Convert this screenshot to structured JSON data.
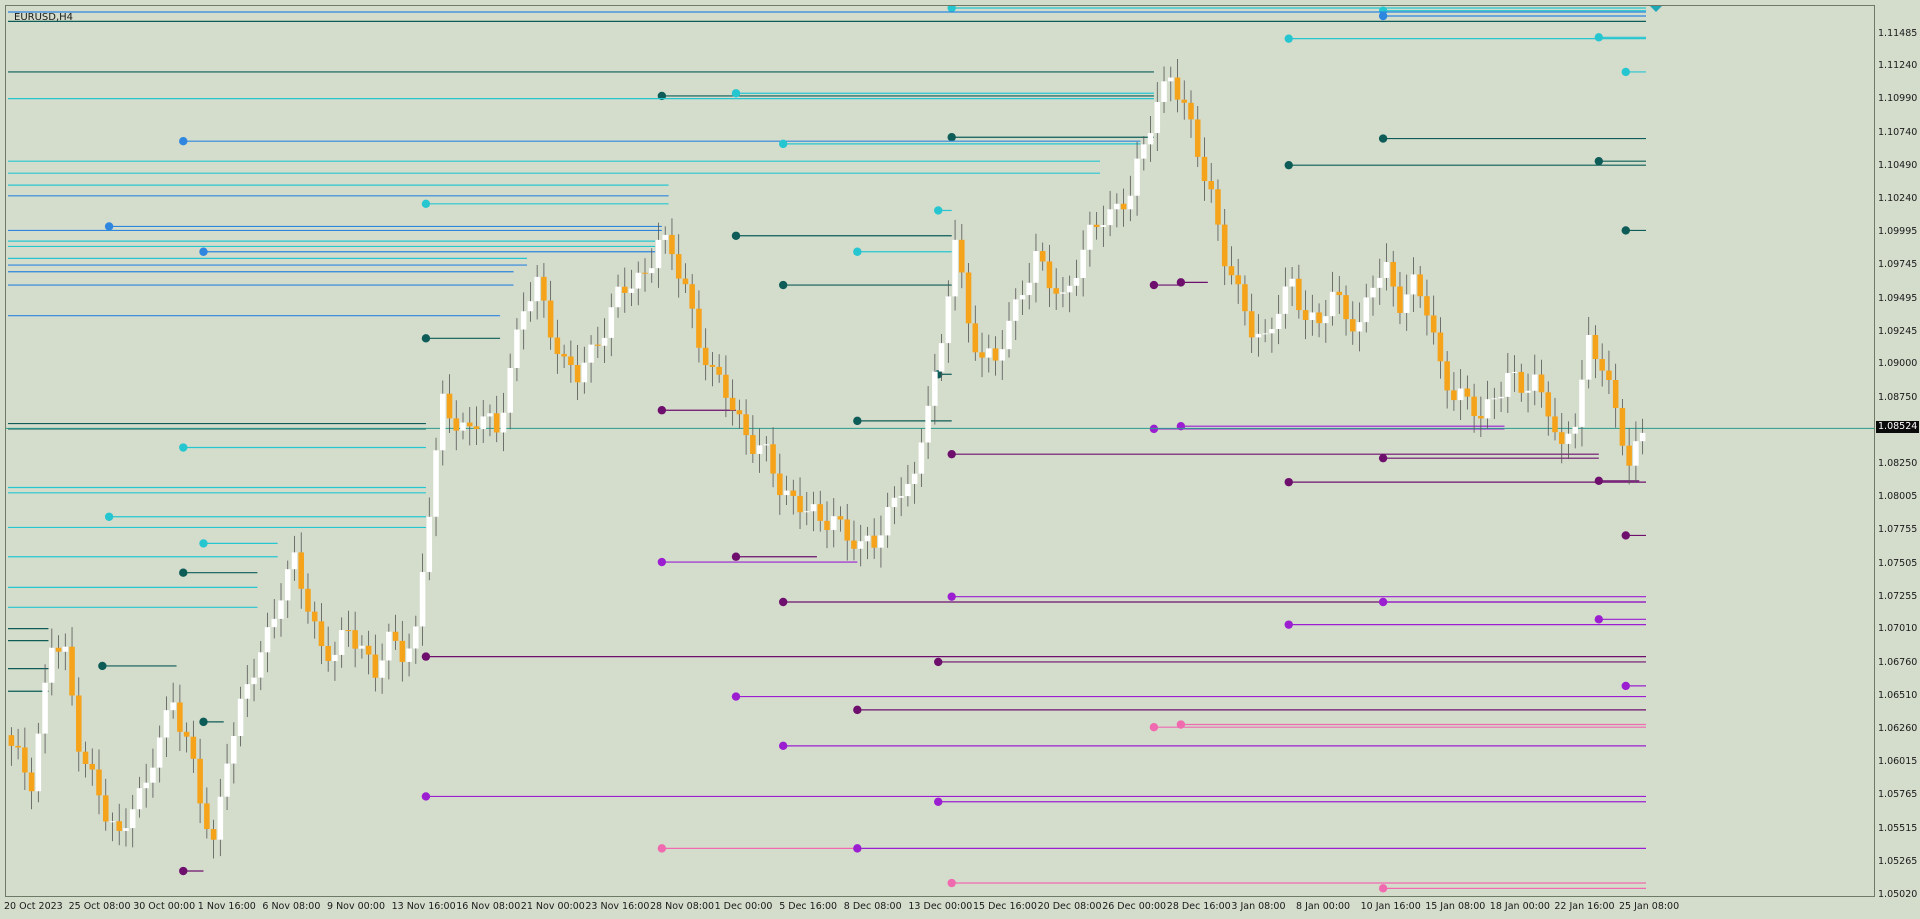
{
  "chart_title": "EURUSD,H4",
  "current_price": "1.08524",
  "colors": {
    "background": "#d4dccc",
    "bull_candle": "#ffffff",
    "bear_candle": "#f5a31a",
    "wick": "#555555",
    "res_dark": "#0d5c57",
    "res_cyan": "#26c6d1",
    "res_blue": "#2e86de",
    "sup_dark": "#6e0f6e",
    "sup_violet": "#9b1fd1",
    "sup_pink": "#f06ab0",
    "current_price_line": "#2a9d8f"
  },
  "price_axis_labels": [
    "1.11485",
    "1.11240",
    "1.10990",
    "1.10740",
    "1.10490",
    "1.10240",
    "1.09995",
    "1.09745",
    "1.09495",
    "1.09245",
    "1.09000",
    "1.08750",
    "1.08250",
    "1.08005",
    "1.07755",
    "1.07505",
    "1.07255",
    "1.07010",
    "1.06760",
    "1.06510",
    "1.06260",
    "1.06015",
    "1.05765",
    "1.05515",
    "1.05265",
    "1.05020"
  ],
  "time_axis_labels": [
    "20 Oct 2023",
    "25 Oct 08:00",
    "30 Oct 00:00",
    "1 Nov 16:00",
    "6 Nov 08:00",
    "9 Nov 00:00",
    "13 Nov 16:00",
    "16 Nov 08:00",
    "21 Nov 00:00",
    "23 Nov 16:00",
    "28 Nov 08:00",
    "1 Dec 00:00",
    "5 Dec 16:00",
    "8 Dec 08:00",
    "13 Dec 00:00",
    "15 Dec 16:00",
    "20 Dec 08:00",
    "26 Dec 00:00",
    "28 Dec 16:00",
    "3 Jan 08:00",
    "8 Jan 00:00",
    "10 Jan 16:00",
    "15 Jan 08:00",
    "18 Jan 00:00",
    "22 Jan 16:00",
    "25 Jan 08:00"
  ],
  "chart_data": {
    "type": "candlestick",
    "symbol": "EURUSD",
    "timeframe": "H4",
    "y_range": [
      1.0498,
      1.1168
    ],
    "current_price": 1.08524,
    "price_path_keypoints": [
      [
        0,
        1.061
      ],
      [
        3,
        1.059
      ],
      [
        6,
        1.069
      ],
      [
        8,
        1.068
      ],
      [
        10,
        1.062
      ],
      [
        14,
        1.056
      ],
      [
        16,
        1.0545
      ],
      [
        18,
        1.0575
      ],
      [
        20,
        1.058
      ],
      [
        22,
        1.062
      ],
      [
        24,
        1.065
      ],
      [
        26,
        1.062
      ],
      [
        28,
        1.057
      ],
      [
        30,
        1.054
      ],
      [
        32,
        1.061
      ],
      [
        34,
        1.064
      ],
      [
        38,
        1.07
      ],
      [
        40,
        1.073
      ],
      [
        42,
        1.075
      ],
      [
        44,
        1.072
      ],
      [
        46,
        1.069
      ],
      [
        48,
        1.068
      ],
      [
        50,
        1.07
      ],
      [
        52,
        1.069
      ],
      [
        54,
        1.067
      ],
      [
        56,
        1.069
      ],
      [
        58,
        1.0685
      ],
      [
        60,
        1.07
      ],
      [
        62,
        1.079
      ],
      [
        64,
        1.087
      ],
      [
        66,
        1.086
      ],
      [
        68,
        1.085
      ],
      [
        70,
        1.086
      ],
      [
        72,
        1.085
      ],
      [
        74,
        1.09
      ],
      [
        76,
        1.094
      ],
      [
        78,
        1.096
      ],
      [
        80,
        1.093
      ],
      [
        82,
        1.09
      ],
      [
        84,
        1.089
      ],
      [
        86,
        1.091
      ],
      [
        88,
        1.093
      ],
      [
        90,
        1.095
      ],
      [
        92,
        1.096
      ],
      [
        94,
        1.097
      ],
      [
        96,
        1.0995
      ],
      [
        98,
        1.098
      ],
      [
        100,
        1.096
      ],
      [
        102,
        1.092
      ],
      [
        104,
        1.089
      ],
      [
        106,
        1.088
      ],
      [
        108,
        1.086
      ],
      [
        110,
        1.084
      ],
      [
        112,
        1.083
      ],
      [
        114,
        1.081
      ],
      [
        116,
        1.08
      ],
      [
        118,
        1.079
      ],
      [
        120,
        1.078
      ],
      [
        122,
        1.079
      ],
      [
        124,
        1.077
      ],
      [
        126,
        1.076
      ],
      [
        128,
        1.077
      ],
      [
        130,
        1.079
      ],
      [
        132,
        1.0805
      ],
      [
        134,
        1.081
      ],
      [
        136,
        1.088
      ],
      [
        138,
        1.091
      ],
      [
        140,
        1.0995
      ],
      [
        142,
        1.093
      ],
      [
        144,
        1.091
      ],
      [
        146,
        1.09
      ],
      [
        148,
        1.093
      ],
      [
        150,
        1.096
      ],
      [
        152,
        1.098
      ],
      [
        154,
        1.096
      ],
      [
        156,
        1.095
      ],
      [
        158,
        1.0975
      ],
      [
        160,
        1.0995
      ],
      [
        162,
        1.101
      ],
      [
        164,
        1.102
      ],
      [
        166,
        1.103
      ],
      [
        168,
        1.106
      ],
      [
        170,
        1.11
      ],
      [
        172,
        1.112
      ],
      [
        174,
        1.109
      ],
      [
        176,
        1.106
      ],
      [
        178,
        1.103
      ],
      [
        180,
        1.098
      ],
      [
        182,
        1.095
      ],
      [
        184,
        1.093
      ],
      [
        186,
        1.092
      ],
      [
        188,
        1.094
      ],
      [
        190,
        1.096
      ],
      [
        192,
        1.094
      ],
      [
        194,
        1.093
      ],
      [
        196,
        1.095
      ],
      [
        198,
        1.094
      ],
      [
        200,
        1.093
      ],
      [
        202,
        1.096
      ],
      [
        204,
        1.097
      ],
      [
        206,
        1.095
      ],
      [
        208,
        1.096
      ],
      [
        210,
        1.094
      ],
      [
        212,
        1.09
      ],
      [
        214,
        1.088
      ],
      [
        216,
        1.087
      ],
      [
        218,
        1.086
      ],
      [
        220,
        1.088
      ],
      [
        222,
        1.089
      ],
      [
        224,
        1.088
      ],
      [
        226,
        1.089
      ],
      [
        228,
        1.087
      ],
      [
        230,
        1.083
      ],
      [
        232,
        1.086
      ],
      [
        234,
        1.092
      ],
      [
        236,
        1.09
      ],
      [
        238,
        1.086
      ],
      [
        240,
        1.083
      ],
      [
        242,
        1.085
      ]
    ],
    "levels": [
      {
        "price": 1.1168,
        "start": 140,
        "type": "res_cyan"
      },
      {
        "price": 1.1166,
        "start": 204,
        "type": "res_cyan"
      },
      {
        "price": 1.1162,
        "start": 204,
        "type": "res_blue"
      },
      {
        "price": 1.1165,
        "start": 0,
        "type": "res_blue"
      },
      {
        "price": 1.1158,
        "start": 0,
        "type": "res_dark"
      },
      {
        "price": 1.1145,
        "start": 190,
        "type": "res_cyan"
      },
      {
        "price": 1.1146,
        "start": 236,
        "type": "res_cyan"
      },
      {
        "price": 1.112,
        "start": 240,
        "type": "res_cyan"
      },
      {
        "price": 1.112,
        "start": 0,
        "type": "res_dark",
        "end": 170
      },
      {
        "price": 1.1102,
        "start": 97,
        "type": "res_dark",
        "end": 170
      },
      {
        "price": 1.1104,
        "start": 108,
        "type": "res_cyan",
        "end": 170
      },
      {
        "price": 1.11,
        "start": 0,
        "type": "res_cyan",
        "end": 170
      },
      {
        "price": 1.1071,
        "start": 140,
        "type": "res_dark",
        "end": 170
      },
      {
        "price": 1.107,
        "start": 204,
        "type": "res_dark"
      },
      {
        "price": 1.1068,
        "start": 26,
        "type": "res_blue",
        "end": 168
      },
      {
        "price": 1.1066,
        "start": 115,
        "type": "res_cyan",
        "end": 168
      },
      {
        "price": 1.1053,
        "start": 236,
        "type": "res_dark"
      },
      {
        "price": 1.105,
        "start": 190,
        "type": "res_dark"
      },
      {
        "price": 1.1053,
        "start": 0,
        "type": "res_cyan",
        "end": 162
      },
      {
        "price": 1.1044,
        "start": 0,
        "type": "res_cyan",
        "end": 162
      },
      {
        "price": 1.1035,
        "start": 0,
        "type": "res_cyan",
        "end": 98
      },
      {
        "price": 1.1027,
        "start": 0,
        "type": "res_blue",
        "end": 98
      },
      {
        "price": 1.1021,
        "start": 62,
        "type": "res_cyan",
        "end": 98
      },
      {
        "price": 1.1016,
        "start": 138,
        "type": "res_cyan",
        "end": 140
      },
      {
        "price": 1.1004,
        "start": 15,
        "type": "res_blue",
        "end": 97
      },
      {
        "price": 1.1001,
        "start": 0,
        "type": "res_blue",
        "end": 97
      },
      {
        "price": 1.1001,
        "start": 240,
        "type": "res_dark"
      },
      {
        "price": 1.0997,
        "start": 108,
        "type": "res_dark",
        "end": 140
      },
      {
        "price": 1.0993,
        "start": 0,
        "type": "res_cyan",
        "end": 96
      },
      {
        "price": 1.0989,
        "start": 0,
        "type": "res_cyan",
        "end": 96
      },
      {
        "price": 1.0985,
        "start": 29,
        "type": "res_blue",
        "end": 96
      },
      {
        "price": 1.0985,
        "start": 126,
        "type": "res_cyan",
        "end": 140
      },
      {
        "price": 1.098,
        "start": 0,
        "type": "res_cyan",
        "end": 77
      },
      {
        "price": 1.0975,
        "start": 0,
        "type": "res_blue",
        "end": 77
      },
      {
        "price": 1.097,
        "start": 0,
        "type": "res_blue",
        "end": 75
      },
      {
        "price": 1.096,
        "start": 115,
        "type": "res_dark",
        "end": 140
      },
      {
        "price": 1.096,
        "start": 0,
        "type": "res_blue",
        "end": 75
      },
      {
        "price": 1.0937,
        "start": 0,
        "type": "res_blue",
        "end": 73
      },
      {
        "price": 1.092,
        "start": 62,
        "type": "res_dark",
        "end": 73
      },
      {
        "price": 1.0893,
        "start": 138,
        "type": "res_dark",
        "end": 140
      },
      {
        "price": 1.0858,
        "start": 126,
        "type": "res_dark",
        "end": 140
      },
      {
        "price": 1.0856,
        "start": 0,
        "type": "res_dark",
        "end": 62
      },
      {
        "price": 1.0852,
        "start": 0,
        "type": "res_dark",
        "end": 62
      },
      {
        "price": 1.0838,
        "start": 26,
        "type": "res_cyan",
        "end": 62
      },
      {
        "price": 1.0808,
        "start": 0,
        "type": "res_cyan",
        "end": 62
      },
      {
        "price": 1.0804,
        "start": 0,
        "type": "res_cyan",
        "end": 62
      },
      {
        "price": 1.0786,
        "start": 15,
        "type": "res_cyan",
        "end": 62
      },
      {
        "price": 1.0778,
        "start": 0,
        "type": "res_cyan",
        "end": 62
      },
      {
        "price": 1.0766,
        "start": 29,
        "type": "res_cyan",
        "end": 40
      },
      {
        "price": 1.0756,
        "start": 0,
        "type": "res_cyan",
        "end": 40
      },
      {
        "price": 1.0744,
        "start": 26,
        "type": "res_dark",
        "end": 37
      },
      {
        "price": 1.0733,
        "start": 0,
        "type": "res_cyan",
        "end": 37
      },
      {
        "price": 1.0718,
        "start": 0,
        "type": "res_cyan",
        "end": 37
      },
      {
        "price": 1.0702,
        "start": 0,
        "type": "res_dark",
        "end": 6
      },
      {
        "price": 1.0693,
        "start": 0,
        "type": "res_dark",
        "end": 6
      },
      {
        "price": 1.0672,
        "start": 0,
        "type": "res_dark",
        "end": 6
      },
      {
        "price": 1.0655,
        "start": 0,
        "type": "res_dark",
        "end": 6
      },
      {
        "price": 1.0674,
        "start": 14,
        "type": "res_dark",
        "end": 25
      },
      {
        "price": 1.0632,
        "start": 29,
        "type": "res_dark",
        "end": 32
      },
      {
        "price": 1.0866,
        "start": 97,
        "type": "sup_dark",
        "end": 108
      },
      {
        "price": 1.096,
        "start": 170,
        "type": "sup_dark",
        "end": 174
      },
      {
        "price": 1.0962,
        "start": 174,
        "type": "sup_dark",
        "end": 178
      },
      {
        "price": 1.0852,
        "start": 170,
        "type": "sup_violet",
        "end": 222
      },
      {
        "price": 1.0854,
        "start": 174,
        "type": "sup_violet",
        "end": 222
      },
      {
        "price": 1.0833,
        "start": 140,
        "type": "sup_dark",
        "end": 236
      },
      {
        "price": 1.083,
        "start": 204,
        "type": "sup_dark",
        "end": 236
      },
      {
        "price": 1.0812,
        "start": 190,
        "type": "sup_dark"
      },
      {
        "price": 1.0813,
        "start": 236,
        "type": "sup_dark",
        "end": 242
      },
      {
        "price": 1.0772,
        "start": 240,
        "type": "sup_dark"
      },
      {
        "price": 1.0752,
        "start": 97,
        "type": "sup_violet",
        "end": 126
      },
      {
        "price": 1.0756,
        "start": 108,
        "type": "sup_dark",
        "end": 120
      },
      {
        "price": 1.0726,
        "start": 140,
        "type": "sup_violet"
      },
      {
        "price": 1.0722,
        "start": 115,
        "type": "sup_dark"
      },
      {
        "price": 1.0722,
        "start": 204,
        "type": "sup_violet"
      },
      {
        "price": 1.0705,
        "start": 190,
        "type": "sup_violet"
      },
      {
        "price": 1.0709,
        "start": 236,
        "type": "sup_violet"
      },
      {
        "price": 1.0681,
        "start": 62,
        "type": "sup_dark"
      },
      {
        "price": 1.0677,
        "start": 138,
        "type": "sup_dark"
      },
      {
        "price": 1.0659,
        "start": 240,
        "type": "sup_violet"
      },
      {
        "price": 1.0651,
        "start": 108,
        "type": "sup_violet"
      },
      {
        "price": 1.0641,
        "start": 126,
        "type": "sup_dark"
      },
      {
        "price": 1.0628,
        "start": 170,
        "type": "sup_pink"
      },
      {
        "price": 1.063,
        "start": 174,
        "type": "sup_pink"
      },
      {
        "price": 1.0614,
        "start": 115,
        "type": "sup_violet"
      },
      {
        "price": 1.0576,
        "start": 62,
        "type": "sup_violet"
      },
      {
        "price": 1.0572,
        "start": 138,
        "type": "sup_violet"
      },
      {
        "price": 1.0537,
        "start": 97,
        "type": "sup_pink",
        "end": 126
      },
      {
        "price": 1.0537,
        "start": 126,
        "type": "sup_violet"
      },
      {
        "price": 1.0511,
        "start": 140,
        "type": "sup_pink"
      },
      {
        "price": 1.0507,
        "start": 204,
        "type": "sup_pink"
      },
      {
        "price": 1.052,
        "start": 26,
        "type": "sup_dark",
        "end": 29
      }
    ]
  }
}
